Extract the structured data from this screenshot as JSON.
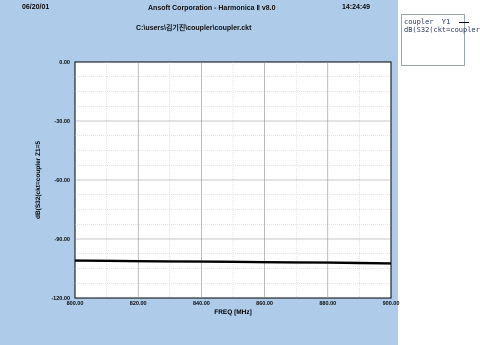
{
  "header": {
    "date": "06/20/01",
    "title": "Ansoft Corporation - Harmonica Ⅱ v8.0",
    "time": "14:24:49",
    "path": "C:\\users\\김기진\\coupler\\coupler.ckt"
  },
  "legend": {
    "name": "coupler",
    "series_id": "Y1",
    "series_label": "dB(S32(ckt=coupler"
  },
  "colors": {
    "panel": "#aecbe9",
    "plot_bg": "#ffffff",
    "grid": "#8f8f8f",
    "trace": "#000000"
  },
  "chart_data": {
    "type": "line",
    "xlabel": "FREQ [MHz]",
    "ylabel": "dB(S32(ckt=coupler Z1=5",
    "xlim": [
      800,
      900
    ],
    "ylim": [
      -120,
      0
    ],
    "x_ticks": [
      800,
      820,
      840,
      860,
      880,
      900
    ],
    "y_ticks": [
      0,
      -30,
      -60,
      -90,
      -120
    ],
    "x_tick_labels": [
      "800.00",
      "820.00",
      "840.00",
      "860.00",
      "880.00",
      "900.00"
    ],
    "y_tick_labels": [
      "0.00",
      "-30.00",
      "-60.00",
      "-90.00",
      "-120.00"
    ],
    "grid": true,
    "series": [
      {
        "x": [
          800,
          810,
          820,
          830,
          840,
          850,
          860,
          870,
          880,
          890,
          900
        ],
        "y": [
          -101.0,
          -101.1,
          -101.3,
          -101.4,
          -101.5,
          -101.6,
          -101.8,
          -101.9,
          -102.0,
          -102.2,
          -102.4
        ]
      }
    ]
  }
}
